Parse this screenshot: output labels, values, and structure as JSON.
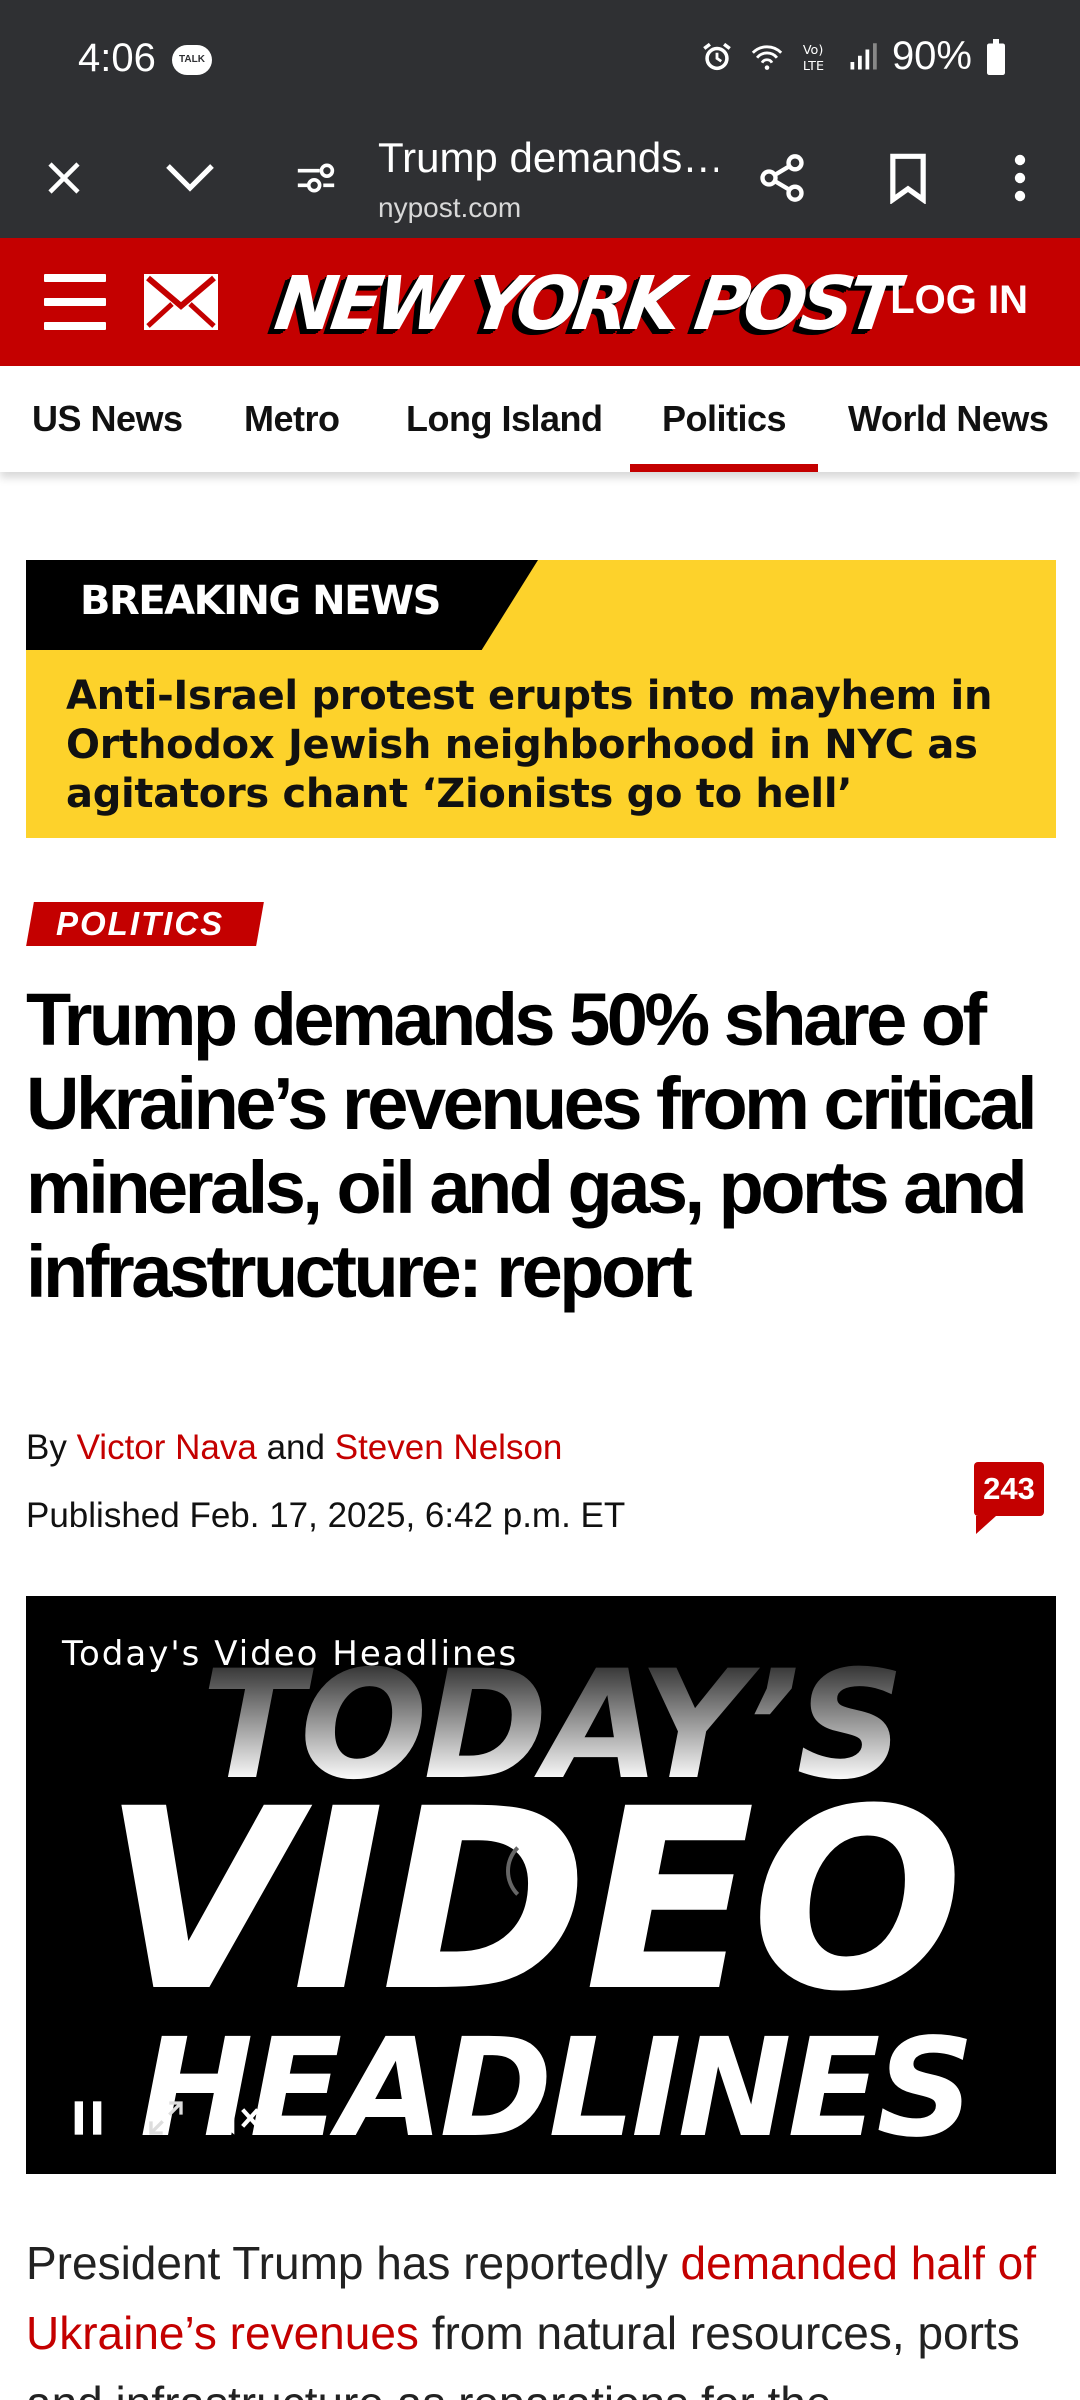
{
  "status_bar": {
    "time": "4:06",
    "talk_badge": "TALK",
    "battery": "90%"
  },
  "browser": {
    "tab_title": "Trump demands…",
    "domain": "nypost.com",
    "icons": [
      "close-icon",
      "chevron-down-icon",
      "page-info-icon",
      "share-icon",
      "bookmark-icon",
      "more-vert-icon"
    ]
  },
  "header": {
    "logo": "NEW YORK POST",
    "login": "LOG IN"
  },
  "nav": {
    "items": [
      "US News",
      "Metro",
      "Long Island",
      "Politics",
      "World News"
    ],
    "active": "Politics"
  },
  "breaking": {
    "label": "BREAKING NEWS",
    "text": "Anti-Israel protest erupts into mayhem in Orthodox Jewish neighborhood in NYC as agitators chant ‘Zionists go to hell’"
  },
  "article": {
    "section": "POLITICS",
    "headline": "Trump demands 50% share of Ukraine’s revenues from critical minerals, oil and gas, ports and infrastructure: report",
    "by": "By",
    "author1": "Victor Nava",
    "and": "and",
    "author2": "Steven Nelson",
    "published": "Published Feb. 17, 2025, 6:42 p.m. ET",
    "comment_count": "243",
    "body_start": "President Trump has reportedly ",
    "body_link": "demanded half of Ukraine’s revenues",
    "body_rest": " from natural resources, ports and infrastructure as reparations for the"
  },
  "video": {
    "caption": "Today's Video Headlines",
    "line1": "TODAY’S",
    "line2": "VIDEO",
    "line3": "HEADLINES"
  },
  "colors": {
    "brand_red": "#c40000",
    "breaking_yellow": "#fdd22b",
    "chrome_dark": "#2f3033"
  }
}
